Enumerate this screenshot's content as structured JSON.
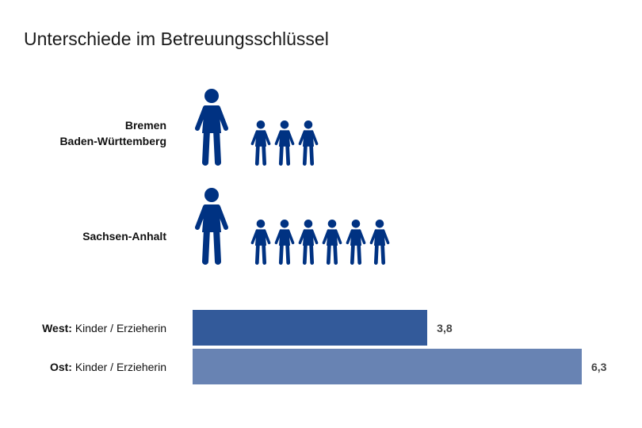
{
  "title": "Unterschiede im Betreuungsschlüssel",
  "groups": [
    {
      "labels": [
        "Bremen",
        "Baden-Württemberg"
      ],
      "adults": 1,
      "children": 3
    },
    {
      "labels": [
        "Sachsen-Anhalt"
      ],
      "adults": 1,
      "children": 6
    }
  ],
  "icon_color": "#003282",
  "chart_data": {
    "type": "bar",
    "orientation": "horizontal",
    "categories": [
      "West: Kinder / Erzieherin",
      "Ost: Kinder / Erzieherin"
    ],
    "category_parts": [
      {
        "bold": "West:",
        "rest": " Kinder / Erzieherin"
      },
      {
        "bold": "Ost:",
        "rest": " Kinder / Erzieherin"
      }
    ],
    "values": [
      3.8,
      6.3
    ],
    "value_labels": [
      "3,8",
      "6,3"
    ],
    "colors": [
      "#335a9a",
      "#6883b3"
    ],
    "xlim": [
      0,
      6.3
    ],
    "grid": false
  }
}
